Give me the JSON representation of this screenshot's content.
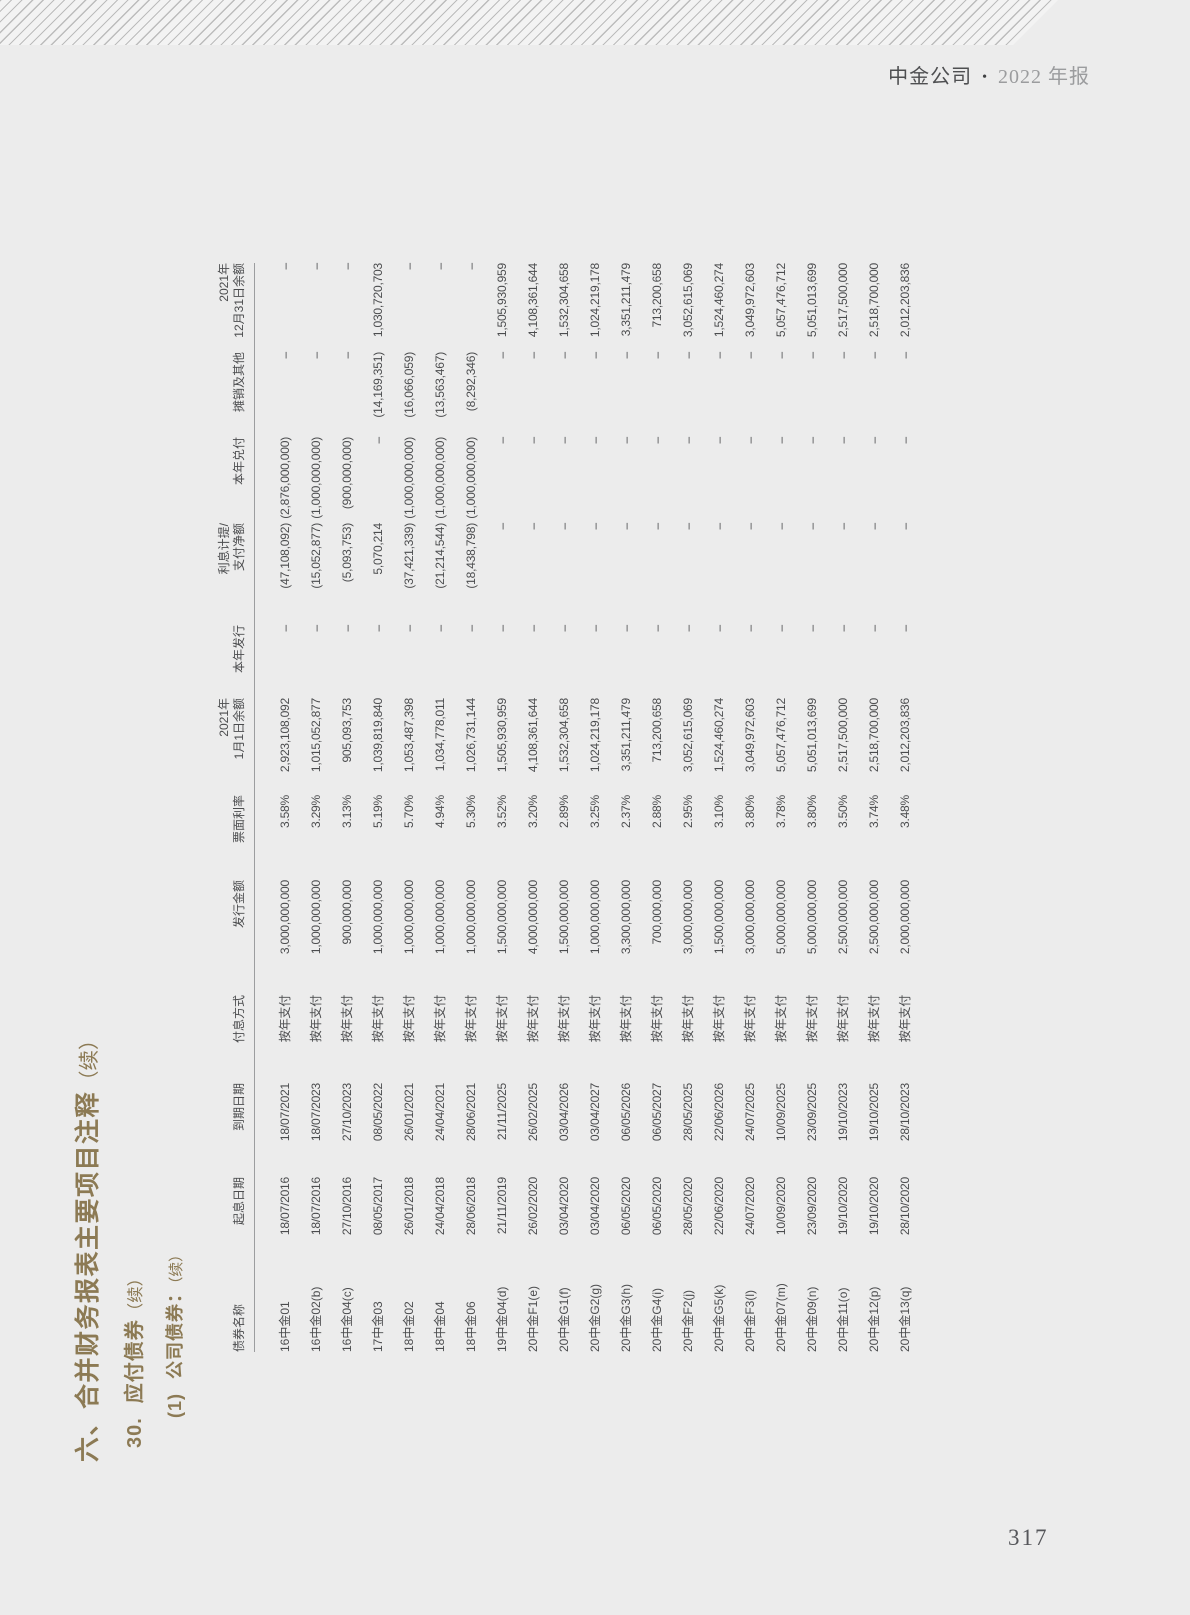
{
  "header": {
    "brand": "中金公司",
    "separator": "•",
    "edition": "2022 年报"
  },
  "headings": {
    "section_title": "六、合并财务报表主要项目注释",
    "section_cont": "（续）",
    "note_number": "30.",
    "note_title": "应付债券",
    "note_cont": "（续）",
    "sub_number": "(1)",
    "sub_title": "公司债券：",
    "sub_cont": "（续）"
  },
  "table": {
    "columns": [
      "债券名称",
      "起息日期",
      "到期日期",
      "付息方式",
      "发行金额",
      "票面利率",
      "2021年\n1月1日余额",
      "本年发行",
      "利息计提/\n支付净额",
      "本年兑付",
      "摊销及其他",
      "2021年\n12月31日余额"
    ],
    "rows": [
      [
        "16中金01",
        "18/07/2016",
        "18/07/2021",
        "按年支付",
        "3,000,000,000",
        "3.58%",
        "2,923,108,092",
        "–",
        "(47,108,092)",
        "(2,876,000,000)",
        "–",
        "–"
      ],
      [
        "16中金02(b)",
        "18/07/2016",
        "18/07/2023",
        "按年支付",
        "1,000,000,000",
        "3.29%",
        "1,015,052,877",
        "–",
        "(15,052,877)",
        "(1,000,000,000)",
        "–",
        "–"
      ],
      [
        "16中金04(c)",
        "27/10/2016",
        "27/10/2023",
        "按年支付",
        "900,000,000",
        "3.13%",
        "905,093,753",
        "–",
        "(5,093,753)",
        "(900,000,000)",
        "–",
        "–"
      ],
      [
        "17中金03",
        "08/05/2017",
        "08/05/2022",
        "按年支付",
        "1,000,000,000",
        "5.19%",
        "1,039,819,840",
        "–",
        "5,070,214",
        "–",
        "(14,169,351)",
        "1,030,720,703"
      ],
      [
        "18中金02",
        "26/01/2018",
        "26/01/2021",
        "按年支付",
        "1,000,000,000",
        "5.70%",
        "1,053,487,398",
        "–",
        "(37,421,339)",
        "(1,000,000,000)",
        "(16,066,059)",
        "–"
      ],
      [
        "18中金04",
        "24/04/2018",
        "24/04/2021",
        "按年支付",
        "1,000,000,000",
        "4.94%",
        "1,034,778,011",
        "–",
        "(21,214,544)",
        "(1,000,000,000)",
        "(13,563,467)",
        "–"
      ],
      [
        "18中金06",
        "28/06/2018",
        "28/06/2021",
        "按年支付",
        "1,000,000,000",
        "5.30%",
        "1,026,731,144",
        "–",
        "(18,438,798)",
        "(1,000,000,000)",
        "(8,292,346)",
        "–"
      ],
      [
        "19中金04(d)",
        "21/11/2019",
        "21/11/2025",
        "按年支付",
        "1,500,000,000",
        "3.52%",
        "1,505,930,959",
        "–",
        "–",
        "–",
        "–",
        "1,505,930,959"
      ],
      [
        "20中金F1(e)",
        "26/02/2020",
        "26/02/2025",
        "按年支付",
        "4,000,000,000",
        "3.20%",
        "4,108,361,644",
        "–",
        "–",
        "–",
        "–",
        "4,108,361,644"
      ],
      [
        "20中金G1(f)",
        "03/04/2020",
        "03/04/2026",
        "按年支付",
        "1,500,000,000",
        "2.89%",
        "1,532,304,658",
        "–",
        "–",
        "–",
        "–",
        "1,532,304,658"
      ],
      [
        "20中金G2(g)",
        "03/04/2020",
        "03/04/2027",
        "按年支付",
        "1,000,000,000",
        "3.25%",
        "1,024,219,178",
        "–",
        "–",
        "–",
        "–",
        "1,024,219,178"
      ],
      [
        "20中金G3(h)",
        "06/05/2020",
        "06/05/2026",
        "按年支付",
        "3,300,000,000",
        "2.37%",
        "3,351,211,479",
        "–",
        "–",
        "–",
        "–",
        "3,351,211,479"
      ],
      [
        "20中金G4(i)",
        "06/05/2020",
        "06/05/2027",
        "按年支付",
        "700,000,000",
        "2.88%",
        "713,200,658",
        "–",
        "–",
        "–",
        "–",
        "713,200,658"
      ],
      [
        "20中金F2(j)",
        "28/05/2020",
        "28/05/2025",
        "按年支付",
        "3,000,000,000",
        "2.95%",
        "3,052,615,069",
        "–",
        "–",
        "–",
        "–",
        "3,052,615,069"
      ],
      [
        "20中金G5(k)",
        "22/06/2020",
        "22/06/2026",
        "按年支付",
        "1,500,000,000",
        "3.10%",
        "1,524,460,274",
        "–",
        "–",
        "–",
        "–",
        "1,524,460,274"
      ],
      [
        "20中金F3(l)",
        "24/07/2020",
        "24/07/2025",
        "按年支付",
        "3,000,000,000",
        "3.80%",
        "3,049,972,603",
        "–",
        "–",
        "–",
        "–",
        "3,049,972,603"
      ],
      [
        "20中金07(m)",
        "10/09/2020",
        "10/09/2025",
        "按年支付",
        "5,000,000,000",
        "3.78%",
        "5,057,476,712",
        "–",
        "–",
        "–",
        "–",
        "5,057,476,712"
      ],
      [
        "20中金09(n)",
        "23/09/2020",
        "23/09/2025",
        "按年支付",
        "5,000,000,000",
        "3.80%",
        "5,051,013,699",
        "–",
        "–",
        "–",
        "–",
        "5,051,013,699"
      ],
      [
        "20中金11(o)",
        "19/10/2020",
        "19/10/2023",
        "按年支付",
        "2,500,000,000",
        "3.50%",
        "2,517,500,000",
        "–",
        "–",
        "–",
        "–",
        "2,517,500,000"
      ],
      [
        "20中金12(p)",
        "19/10/2020",
        "19/10/2025",
        "按年支付",
        "2,500,000,000",
        "3.74%",
        "2,518,700,000",
        "–",
        "–",
        "–",
        "–",
        "2,518,700,000"
      ],
      [
        "20中金13(q)",
        "28/10/2020",
        "28/10/2023",
        "按年支付",
        "2,000,000,000",
        "3.48%",
        "2,012,203,836",
        "–",
        "–",
        "–",
        "–",
        "2,012,203,836"
      ]
    ]
  },
  "footer": {
    "page_number": "317"
  }
}
